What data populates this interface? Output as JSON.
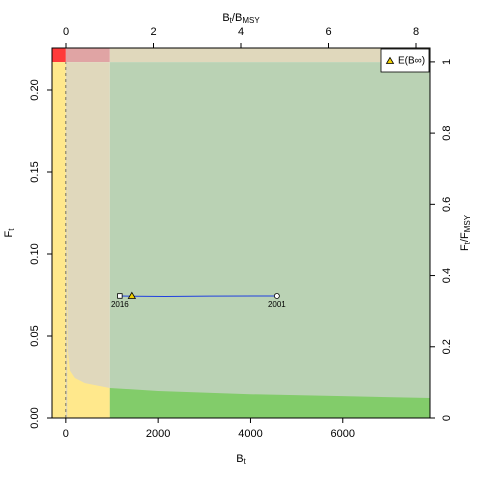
{
  "chart_data": {
    "type": "kobe",
    "x_label_parts": [
      "B",
      "t"
    ],
    "y_label_parts": [
      "F",
      "t"
    ],
    "x2_label_parts": [
      "B",
      "t",
      "/B",
      "MSY"
    ],
    "y2_label_parts": [
      "F",
      "t",
      "/F",
      "MSY"
    ],
    "xlim": [
      -300,
      7890
    ],
    "ylim": [
      0,
      0.2256
    ],
    "x2lim": [
      -0.32,
      8.32
    ],
    "y2lim": [
      0,
      1.039
    ],
    "xticks": [
      0,
      2000,
      4000,
      6000
    ],
    "yticks": [
      {
        "value": 0,
        "label": "0.00"
      },
      {
        "value": 0.05,
        "label": "0.05"
      },
      {
        "value": 0.1,
        "label": "0.10"
      },
      {
        "value": 0.15,
        "label": "0.15"
      },
      {
        "value": 0.2,
        "label": "0.20"
      }
    ],
    "x2ticks": [
      0,
      2,
      4,
      6,
      8
    ],
    "y2ticks": [
      0,
      0.2,
      0.4,
      0.6,
      0.8,
      1
    ],
    "bmsy": 953,
    "fmsy": 0.217,
    "zone_colors": {
      "red": "#ff3a3a",
      "pink": "#e0a4a4",
      "tan": "#e0d8bc",
      "yellow": "#ffe88c",
      "grey_green": "#bad2b4",
      "green": "#82cc6a"
    },
    "boundary_curve": {
      "x": [
        30,
        43,
        87,
        195,
        412,
        953,
        2000,
        4000,
        6000,
        7890
      ],
      "y": [
        0.2,
        0.0415,
        0.029,
        0.0244,
        0.0213,
        0.0183,
        0.0165,
        0.0145,
        0.0133,
        0.0122
      ]
    },
    "trajectory": {
      "color": "#2040e0",
      "x": [
        4572,
        3100,
        2150,
        1500,
        1170
      ],
      "y": [
        0.0744,
        0.0743,
        0.0741,
        0.0742,
        0.0744
      ],
      "start_label": "2001",
      "end_label": "2016"
    },
    "equilibrium": {
      "x": 1430,
      "y": 0.0744,
      "color": "#f0d000"
    },
    "legend_label": "E(B∞)",
    "legend_position": "top-right"
  }
}
